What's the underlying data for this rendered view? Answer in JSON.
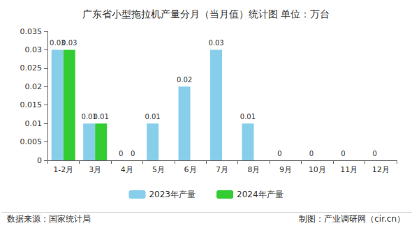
{
  "chart_data": {
    "type": "bar",
    "title": "广东省小型拖拉机产量分月（当月值）统计图 单位：万台",
    "categories": [
      "1-2月",
      "3月",
      "4月",
      "5月",
      "6月",
      "7月",
      "8月",
      "9月",
      "10月",
      "11月",
      "12月"
    ],
    "series": [
      {
        "name": "2023年产量",
        "color": "#87ceeb",
        "values": [
          0.03,
          0.01,
          0,
          0.01,
          0.02,
          0.03,
          0.01,
          0,
          0,
          0,
          0
        ]
      },
      {
        "name": "2024年产量",
        "color": "#33cc33",
        "values": [
          0.03,
          0.01,
          0,
          null,
          null,
          null,
          null,
          null,
          null,
          null,
          null
        ]
      }
    ],
    "ylim": [
      0,
      0.035
    ],
    "yticks": [
      0,
      0.005,
      0.01,
      0.015,
      0.02,
      0.025,
      0.03,
      0.035
    ],
    "grid": false,
    "legend": "bottom",
    "data_labels": true,
    "annotations": [
      "数据来源：国家统计局",
      "制图：产业调研网（cir.cn）"
    ]
  }
}
